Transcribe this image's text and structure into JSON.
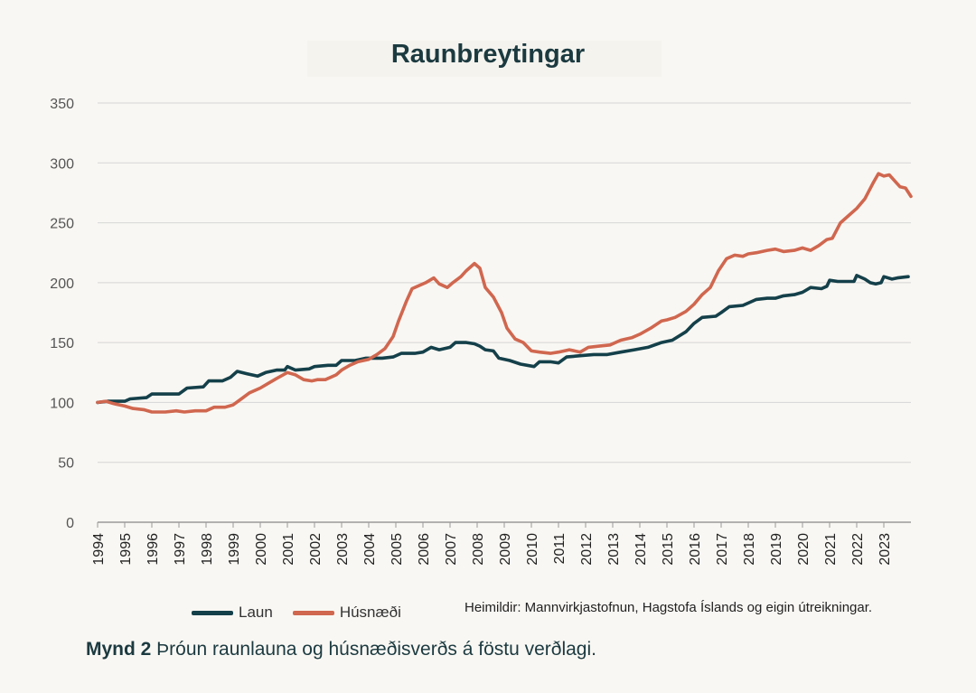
{
  "chart_data": {
    "type": "line",
    "title": "Raunbreytingar",
    "xlabel": "",
    "ylabel": "",
    "ylim": [
      0,
      350
    ],
    "yticks": [
      0,
      50,
      100,
      150,
      200,
      250,
      300,
      350
    ],
    "xlim": [
      1994,
      2023
    ],
    "xticks": [
      "1994",
      "1995",
      "1996",
      "1997",
      "1998",
      "1999",
      "2000",
      "2001",
      "2002",
      "2003",
      "2004",
      "2005",
      "2006",
      "2007",
      "2008",
      "2009",
      "2010",
      "2011",
      "2012",
      "2013",
      "2014",
      "2015",
      "2016",
      "2017",
      "2018",
      "2019",
      "2020",
      "2021",
      "2022",
      "2023"
    ],
    "grid": true,
    "legend_position": "bottom-left",
    "series": [
      {
        "name": "Laun",
        "color": "#14404a",
        "points": [
          [
            1994.0,
            100
          ],
          [
            1994.4,
            101
          ],
          [
            1995.0,
            101
          ],
          [
            1995.2,
            103
          ],
          [
            1995.8,
            104
          ],
          [
            1996.0,
            107
          ],
          [
            1996.7,
            107
          ],
          [
            1997.0,
            107
          ],
          [
            1997.3,
            112
          ],
          [
            1997.9,
            113
          ],
          [
            1998.1,
            118
          ],
          [
            1998.6,
            118
          ],
          [
            1998.9,
            121
          ],
          [
            1999.15,
            126
          ],
          [
            1999.5,
            124
          ],
          [
            1999.9,
            122
          ],
          [
            2000.2,
            125
          ],
          [
            2000.6,
            127
          ],
          [
            2000.9,
            127
          ],
          [
            2001.0,
            130
          ],
          [
            2001.3,
            127
          ],
          [
            2001.8,
            128
          ],
          [
            2002.0,
            130
          ],
          [
            2002.5,
            131
          ],
          [
            2002.8,
            131
          ],
          [
            2003.0,
            135
          ],
          [
            2003.5,
            135
          ],
          [
            2003.9,
            137
          ],
          [
            2004.5,
            137
          ],
          [
            2004.9,
            138
          ],
          [
            2005.2,
            141
          ],
          [
            2005.7,
            141
          ],
          [
            2006.0,
            142
          ],
          [
            2006.3,
            146
          ],
          [
            2006.6,
            144
          ],
          [
            2007.0,
            146
          ],
          [
            2007.2,
            150
          ],
          [
            2007.6,
            150
          ],
          [
            2007.9,
            149
          ],
          [
            2008.1,
            147
          ],
          [
            2008.3,
            144
          ],
          [
            2008.6,
            143
          ],
          [
            2008.8,
            137
          ],
          [
            2009.2,
            135
          ],
          [
            2009.6,
            132
          ],
          [
            2010.1,
            130
          ],
          [
            2010.3,
            134
          ],
          [
            2010.7,
            134
          ],
          [
            2011.0,
            133
          ],
          [
            2011.3,
            138
          ],
          [
            2011.8,
            139
          ],
          [
            2012.3,
            140
          ],
          [
            2012.8,
            140
          ],
          [
            2013.3,
            142
          ],
          [
            2013.8,
            144
          ],
          [
            2014.3,
            146
          ],
          [
            2014.8,
            150
          ],
          [
            2015.2,
            152
          ],
          [
            2015.7,
            159
          ],
          [
            2016.0,
            166
          ],
          [
            2016.3,
            171
          ],
          [
            2016.8,
            172
          ],
          [
            2017.0,
            175
          ],
          [
            2017.3,
            180
          ],
          [
            2017.8,
            181
          ],
          [
            2018.0,
            183
          ],
          [
            2018.3,
            186
          ],
          [
            2018.7,
            187
          ],
          [
            2019.0,
            187
          ],
          [
            2019.3,
            189
          ],
          [
            2019.7,
            190
          ],
          [
            2020.0,
            192
          ],
          [
            2020.3,
            196
          ],
          [
            2020.7,
            195
          ],
          [
            2020.9,
            197
          ],
          [
            2021.0,
            202
          ],
          [
            2021.3,
            201
          ],
          [
            2021.7,
            201
          ],
          [
            2021.9,
            201
          ],
          [
            2022.0,
            206
          ],
          [
            2022.3,
            203
          ],
          [
            2022.5,
            200
          ],
          [
            2022.7,
            199
          ],
          [
            2022.9,
            200
          ],
          [
            2023.0,
            205
          ],
          [
            2023.3,
            203
          ],
          [
            2023.5,
            204
          ],
          [
            2023.9,
            205
          ]
        ]
      },
      {
        "name": "Húsnæði",
        "color": "#d0674f",
        "points": [
          [
            1994.0,
            100
          ],
          [
            1994.3,
            101
          ],
          [
            1994.6,
            99
          ],
          [
            1995.0,
            97
          ],
          [
            1995.3,
            95
          ],
          [
            1995.7,
            94
          ],
          [
            1996.0,
            92
          ],
          [
            1996.5,
            92
          ],
          [
            1996.9,
            93
          ],
          [
            1997.2,
            92
          ],
          [
            1997.6,
            93
          ],
          [
            1998.0,
            93
          ],
          [
            1998.3,
            96
          ],
          [
            1998.7,
            96
          ],
          [
            1999.0,
            98
          ],
          [
            1999.3,
            103
          ],
          [
            1999.6,
            108
          ],
          [
            2000.0,
            112
          ],
          [
            2000.3,
            116
          ],
          [
            2000.6,
            120
          ],
          [
            2001.0,
            125
          ],
          [
            2001.3,
            123
          ],
          [
            2001.6,
            119
          ],
          [
            2001.9,
            118
          ],
          [
            2002.1,
            119
          ],
          [
            2002.4,
            119
          ],
          [
            2002.8,
            123
          ],
          [
            2003.0,
            127
          ],
          [
            2003.3,
            131
          ],
          [
            2003.6,
            134
          ],
          [
            2004.0,
            136
          ],
          [
            2004.3,
            140
          ],
          [
            2004.6,
            145
          ],
          [
            2004.9,
            155
          ],
          [
            2005.1,
            168
          ],
          [
            2005.4,
            185
          ],
          [
            2005.6,
            195
          ],
          [
            2005.9,
            198
          ],
          [
            2006.1,
            200
          ],
          [
            2006.4,
            204
          ],
          [
            2006.6,
            199
          ],
          [
            2006.9,
            196
          ],
          [
            2007.1,
            200
          ],
          [
            2007.4,
            205
          ],
          [
            2007.6,
            210
          ],
          [
            2007.9,
            216
          ],
          [
            2008.1,
            212
          ],
          [
            2008.3,
            196
          ],
          [
            2008.6,
            188
          ],
          [
            2008.9,
            175
          ],
          [
            2009.1,
            162
          ],
          [
            2009.4,
            153
          ],
          [
            2009.7,
            150
          ],
          [
            2010.0,
            143
          ],
          [
            2010.3,
            142
          ],
          [
            2010.7,
            141
          ],
          [
            2011.0,
            142
          ],
          [
            2011.4,
            144
          ],
          [
            2011.8,
            142
          ],
          [
            2012.1,
            146
          ],
          [
            2012.5,
            147
          ],
          [
            2012.9,
            148
          ],
          [
            2013.3,
            152
          ],
          [
            2013.7,
            154
          ],
          [
            2014.0,
            157
          ],
          [
            2014.4,
            162
          ],
          [
            2014.8,
            168
          ],
          [
            2015.0,
            169
          ],
          [
            2015.3,
            171
          ],
          [
            2015.7,
            176
          ],
          [
            2016.0,
            182
          ],
          [
            2016.3,
            190
          ],
          [
            2016.6,
            196
          ],
          [
            2016.9,
            210
          ],
          [
            2017.2,
            220
          ],
          [
            2017.5,
            223
          ],
          [
            2017.8,
            222
          ],
          [
            2018.0,
            224
          ],
          [
            2018.3,
            225
          ],
          [
            2018.7,
            227
          ],
          [
            2019.0,
            228
          ],
          [
            2019.3,
            226
          ],
          [
            2019.7,
            227
          ],
          [
            2020.0,
            229
          ],
          [
            2020.3,
            227
          ],
          [
            2020.6,
            231
          ],
          [
            2020.9,
            236
          ],
          [
            2021.1,
            237
          ],
          [
            2021.4,
            250
          ],
          [
            2021.7,
            256
          ],
          [
            2022.0,
            262
          ],
          [
            2022.3,
            270
          ],
          [
            2022.6,
            283
          ],
          [
            2022.8,
            291
          ],
          [
            2023.0,
            289
          ],
          [
            2023.2,
            290
          ],
          [
            2023.4,
            285
          ],
          [
            2023.6,
            280
          ],
          [
            2023.8,
            279
          ],
          [
            2024.0,
            272
          ]
        ]
      }
    ],
    "source": "Heimildir:  Mannvirkjastofnun, Hagstofa Íslands og eigin útreikningar.",
    "caption_label": "Mynd 2",
    "caption_text": " Þróun raunlauna og húsnæðisverðs á föstu verðlagi."
  }
}
